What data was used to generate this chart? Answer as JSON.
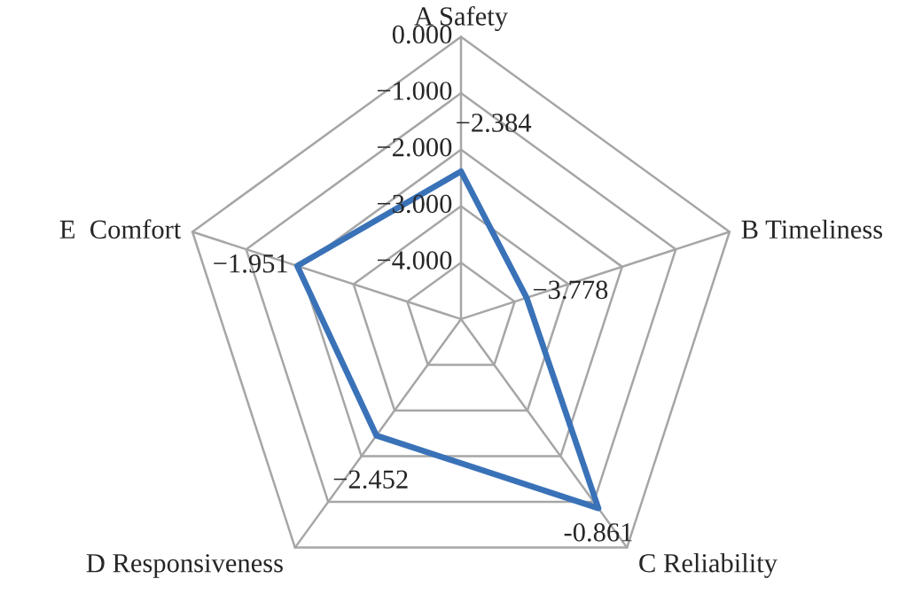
{
  "chart_data": {
    "type": "radar",
    "categories": [
      "A Safety",
      "B Timeliness",
      "C Reliability",
      "D Responsiveness",
      "E  Comfort"
    ],
    "series": [
      {
        "color": "#3a72b8",
        "values": [
          -2.384,
          -3.778,
          -0.861,
          -2.452,
          -1.951
        ],
        "value_labels": [
          "−2.384",
          "−3.778",
          "-0.861",
          "−2.452",
          "−1.951"
        ]
      }
    ],
    "ylim": [
      -5,
      0
    ],
    "yticks": [
      {
        "value": 0,
        "label": "0.000"
      },
      {
        "value": -1,
        "label": "−1.000"
      },
      {
        "value": -2,
        "label": "−2.000"
      },
      {
        "value": -3,
        "label": "−3.000"
      },
      {
        "value": -4,
        "label": "−4.000"
      }
    ],
    "grid": true,
    "marker": "none",
    "line_style": "solid"
  }
}
